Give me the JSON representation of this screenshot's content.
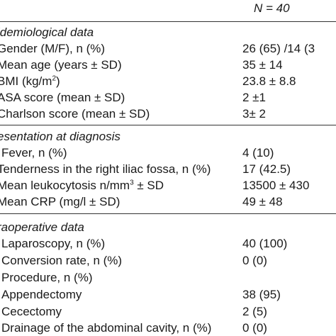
{
  "header": {
    "n_label": "N = 40"
  },
  "sections": [
    {
      "title": "idemiological data",
      "rows": [
        {
          "label": "Gender (M/F), n (%)",
          "value": "26 (65) /14 (3"
        },
        {
          "label": "Mean age (years ± SD)",
          "value": "35 ± 14"
        },
        {
          "label_pre": "BMI (kg/m",
          "label_sup": "2",
          "label_post": ")",
          "value": "23.8 ± 8.8"
        },
        {
          "label": "ASA score (mean ± SD)",
          "value": "2 ±1"
        },
        {
          "label": "Charlson score (mean ± SD)",
          "value": "3± 2"
        }
      ]
    },
    {
      "title": "esentation at diagnosis",
      "rows": [
        {
          "label": "Fever, n (%)",
          "value": "4 (10)"
        },
        {
          "label": "Tenderness in the right iliac fossa, n (%)",
          "value": "17 (42.5)"
        },
        {
          "label_pre": "Mean leukocytosis n/mm",
          "label_sup": "3",
          "label_post": " ± SD",
          "value": "13500 ± 430"
        },
        {
          "label": "Mean CRP (mg/l ± SD)",
          "value": "49 ± 48"
        }
      ]
    },
    {
      "title": "raoperative data",
      "rows": [
        {
          "label": "Laparoscopy, n (%)",
          "value": "40 (100)"
        },
        {
          "label": "Conversion rate, n (%)",
          "value": "0 (0)"
        },
        {
          "label": "Procedure, n (%)",
          "value": ""
        },
        {
          "label": "Appendectomy",
          "value": "38 (95)"
        },
        {
          "label": "Cecectomy",
          "value": "2 (5)"
        },
        {
          "label": "Drainage of the abdominal cavity, n (%)",
          "value": "0 (0)"
        }
      ]
    }
  ]
}
